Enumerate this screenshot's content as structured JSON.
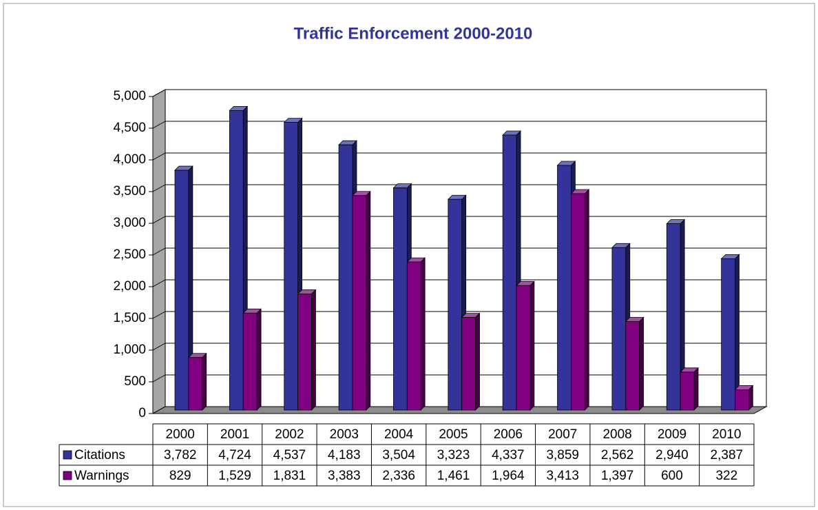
{
  "chart_data": {
    "type": "bar3d",
    "title": "Traffic Enforcement  2000-2010",
    "categories": [
      "2000",
      "2001",
      "2002",
      "2003",
      "2004",
      "2005",
      "2006",
      "2007",
      "2008",
      "2009",
      "2010"
    ],
    "series": [
      {
        "name": "Citations",
        "color": "#333399",
        "values": [
          3782,
          4724,
          4537,
          4183,
          3504,
          3323,
          4337,
          3859,
          2562,
          2940,
          2387
        ],
        "value_labels": [
          "3,782",
          "4,724",
          "4,537",
          "4,183",
          "3,504",
          "3,323",
          "4,337",
          "3,859",
          "2,562",
          "2,940",
          "2,387"
        ]
      },
      {
        "name": "Warnings",
        "color": "#800080",
        "values": [
          829,
          1529,
          1831,
          3383,
          2336,
          1461,
          1964,
          3413,
          1397,
          600,
          322
        ],
        "value_labels": [
          "829",
          "1,529",
          "1,831",
          "3,383",
          "2,336",
          "1,461",
          "1,964",
          "3,413",
          "1,397",
          "600",
          "322"
        ]
      }
    ],
    "ylim": [
      0,
      5000
    ],
    "yticks": [
      0,
      500,
      {
        "value": 1000,
        "label": "1,000"
      },
      {
        "value": 1500,
        "label": "1,500"
      },
      {
        "value": 2000,
        "label": "2,000"
      },
      {
        "value": 2500,
        "label": "2,500"
      },
      {
        "value": 3000,
        "label": "3,000"
      },
      {
        "value": 3500,
        "label": "3,500"
      },
      {
        "value": 4000,
        "label": "4,000"
      },
      {
        "value": 4500,
        "label": "4,500"
      },
      {
        "value": 5000,
        "label": "5,000"
      }
    ],
    "grid": true
  }
}
